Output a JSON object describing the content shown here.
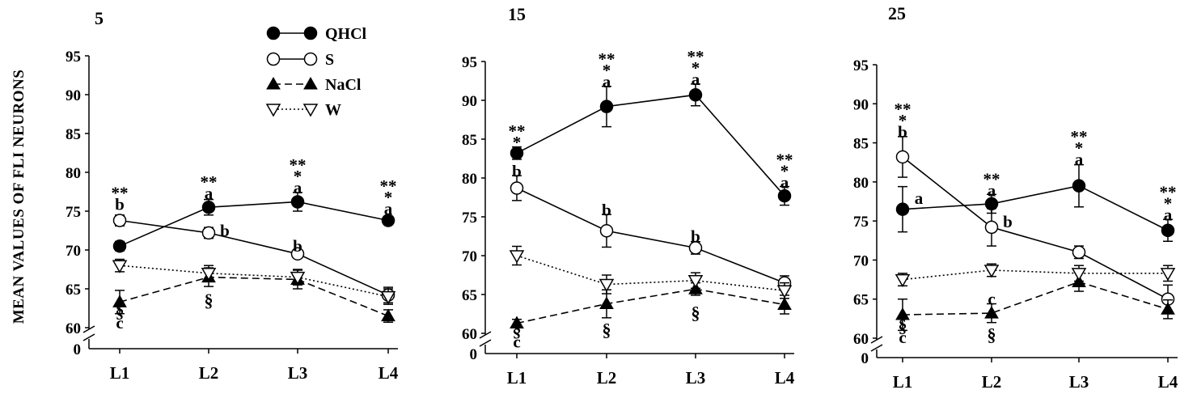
{
  "chart_data": {
    "type": "line",
    "ylabel": "MEAN VALUES OF FLI NEURONS",
    "legend_position": "top-left",
    "series_styles": [
      {
        "name": "QHCl",
        "marker": "filled-circle",
        "line": "solid"
      },
      {
        "name": "S",
        "marker": "open-circle",
        "line": "solid"
      },
      {
        "name": "NaCl",
        "marker": "filled-triangle-up",
        "line": "dashed"
      },
      {
        "name": "W",
        "marker": "open-triangle-down",
        "line": "dotted"
      }
    ],
    "panels": [
      {
        "title": "5",
        "categories": [
          "L1",
          "L2",
          "L3",
          "L4"
        ],
        "ylim": [
          60,
          95
        ],
        "yticks": [
          60,
          65,
          70,
          75,
          80,
          85,
          90,
          95
        ],
        "axis_break_label": "0",
        "series": [
          {
            "name": "QHCl",
            "values": [
              70.5,
              75.5,
              76.2,
              73.8
            ],
            "errors": [
              0.6,
              1.0,
              1.2,
              0.5
            ]
          },
          {
            "name": "S",
            "values": [
              73.8,
              72.2,
              69.5,
              64.2
            ],
            "errors": [
              0.7,
              0.7,
              0.5,
              1.0
            ]
          },
          {
            "name": "NaCl",
            "values": [
              63.3,
              66.5,
              66.2,
              61.5
            ],
            "errors": [
              1.5,
              1.2,
              1.2,
              0.8
            ]
          },
          {
            "name": "W",
            "values": [
              68.0,
              67.0,
              66.5,
              64.0
            ],
            "errors": [
              0.8,
              1.0,
              1.0,
              1.0
            ]
          }
        ],
        "annotations": [
          {
            "cat": "L1",
            "y": 75.8,
            "lines": [
              "**",
              "b"
            ]
          },
          {
            "cat": "L1",
            "y": 60.5,
            "lines": [
              "§",
              "c"
            ]
          },
          {
            "cat": "L2",
            "y": 77.2,
            "lines": [
              "**",
              "a"
            ]
          },
          {
            "cat": "L2",
            "y": 72.4,
            "lines": [
              "b"
            ],
            "dx": 20
          },
          {
            "cat": "L2",
            "y": 63.4,
            "lines": [
              "§"
            ]
          },
          {
            "cat": "L3",
            "y": 77.9,
            "lines": [
              "**",
              "*",
              "a"
            ]
          },
          {
            "cat": "L3",
            "y": 70.4,
            "lines": [
              "b"
            ]
          },
          {
            "cat": "L4",
            "y": 75.2,
            "lines": [
              "**",
              "*",
              "a"
            ]
          }
        ]
      },
      {
        "title": "15",
        "categories": [
          "L1",
          "L2",
          "L3",
          "L4"
        ],
        "ylim": [
          60,
          95
        ],
        "yticks": [
          60,
          65,
          70,
          75,
          80,
          85,
          90,
          95
        ],
        "axis_break_label": "0",
        "series": [
          {
            "name": "QHCl",
            "values": [
              83.2,
              89.2,
              90.7,
              77.7
            ],
            "errors": [
              0.8,
              2.6,
              1.4,
              1.2
            ]
          },
          {
            "name": "S",
            "values": [
              78.7,
              73.2,
              71.0,
              66.5
            ],
            "errors": [
              1.6,
              2.1,
              0.8,
              0.9
            ]
          },
          {
            "name": "NaCl",
            "values": [
              61.3,
              63.8,
              65.7,
              63.7
            ],
            "errors": [
              0.5,
              1.8,
              0.8,
              1.2
            ]
          },
          {
            "name": "W",
            "values": [
              70.0,
              66.3,
              66.8,
              65.5
            ],
            "errors": [
              1.2,
              1.2,
              1.0,
              1.0
            ]
          }
        ],
        "annotations": [
          {
            "cat": "L1",
            "y": 84.5,
            "lines": [
              "**",
              "*"
            ]
          },
          {
            "cat": "L1",
            "y": 80.8,
            "lines": [
              "b"
            ]
          },
          {
            "cat": "L1",
            "y": 58.8,
            "lines": [
              "§",
              "c"
            ]
          },
          {
            "cat": "L2",
            "y": 92.3,
            "lines": [
              "**",
              "*",
              "a"
            ]
          },
          {
            "cat": "L2",
            "y": 75.8,
            "lines": [
              "b"
            ]
          },
          {
            "cat": "L2",
            "y": 60.3,
            "lines": [
              "§"
            ]
          },
          {
            "cat": "L3",
            "y": 92.6,
            "lines": [
              "**",
              "*",
              "a"
            ]
          },
          {
            "cat": "L3",
            "y": 72.4,
            "lines": [
              "b"
            ]
          },
          {
            "cat": "L3",
            "y": 62.5,
            "lines": [
              "§"
            ]
          },
          {
            "cat": "L4",
            "y": 79.3,
            "lines": [
              "**",
              "*",
              "a"
            ]
          }
        ]
      },
      {
        "title": "25",
        "categories": [
          "L1",
          "L2",
          "L3",
          "L4"
        ],
        "ylim": [
          60,
          95
        ],
        "yticks": [
          60,
          65,
          70,
          75,
          80,
          85,
          90,
          95
        ],
        "axis_break_label": "0",
        "series": [
          {
            "name": "QHCl",
            "values": [
              76.5,
              77.2,
              79.5,
              73.8
            ],
            "errors": [
              2.9,
              1.2,
              2.7,
              1.4
            ]
          },
          {
            "name": "S",
            "values": [
              83.2,
              74.2,
              71.0,
              65.0
            ],
            "errors": [
              2.6,
              2.4,
              0.8,
              1.8
            ]
          },
          {
            "name": "NaCl",
            "values": [
              63.0,
              63.2,
              67.2,
              63.7
            ],
            "errors": [
              2.0,
              1.2,
              1.2,
              1.2
            ]
          },
          {
            "name": "W",
            "values": [
              67.5,
              68.7,
              68.3,
              68.3
            ],
            "errors": [
              0.8,
              0.8,
              1.0,
              1.0
            ]
          }
        ],
        "annotations": [
          {
            "cat": "L1",
            "y": 86.3,
            "lines": [
              "**",
              "*",
              "b"
            ]
          },
          {
            "cat": "L1",
            "y": 77.8,
            "lines": [
              "a"
            ],
            "dx": 20
          },
          {
            "cat": "L1",
            "y": 60.0,
            "lines": [
              "§",
              "c"
            ]
          },
          {
            "cat": "L2",
            "y": 78.8,
            "lines": [
              "**",
              "a"
            ]
          },
          {
            "cat": "L2",
            "y": 74.8,
            "lines": [
              "b"
            ],
            "dx": 20
          },
          {
            "cat": "L2",
            "y": 64.9,
            "lines": [
              "c"
            ]
          },
          {
            "cat": "L2",
            "y": 60.3,
            "lines": [
              "§"
            ]
          },
          {
            "cat": "L3",
            "y": 82.8,
            "lines": [
              "**",
              "*",
              "a"
            ]
          },
          {
            "cat": "L4",
            "y": 75.7,
            "lines": [
              "**",
              "*",
              "a"
            ]
          }
        ]
      }
    ]
  }
}
